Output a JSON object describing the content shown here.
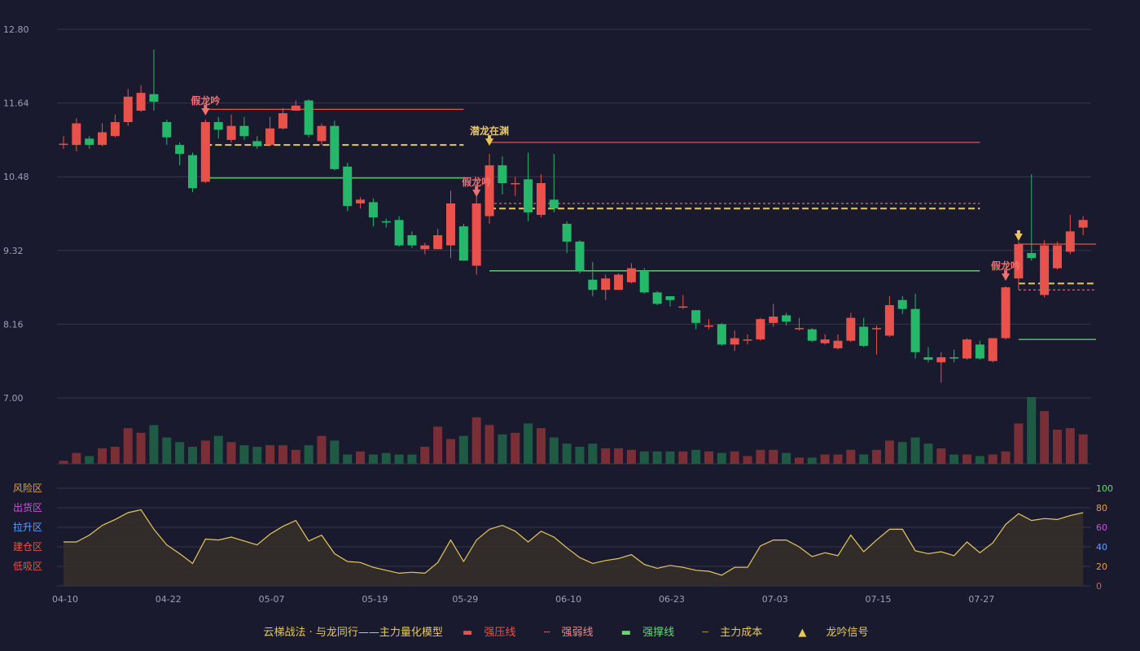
{
  "chart_data": {
    "type": "candlestick",
    "price_axis": {
      "ticks": [
        12.8,
        11.64,
        10.48,
        9.32,
        8.16,
        7.0
      ],
      "ylim": [
        7.0,
        12.8
      ]
    },
    "x_ticks": [
      "04-10",
      "04-22",
      "05-07",
      "05-19",
      "05-29",
      "06-10",
      "06-23",
      "07-03",
      "07-15",
      "07-27"
    ],
    "candles": [
      [
        11.0,
        11.0,
        11.12,
        10.92
      ],
      [
        10.98,
        11.32,
        11.4,
        10.88
      ],
      [
        11.08,
        10.98,
        11.12,
        10.92
      ],
      [
        10.98,
        11.18,
        11.32,
        10.96
      ],
      [
        11.12,
        11.34,
        11.46,
        11.1
      ],
      [
        11.34,
        11.74,
        11.86,
        11.28
      ],
      [
        11.52,
        11.8,
        11.92,
        11.5
      ],
      [
        11.78,
        11.66,
        12.48,
        11.52
      ],
      [
        11.34,
        11.1,
        11.38,
        10.98
      ],
      [
        10.98,
        10.84,
        11.02,
        10.66
      ],
      [
        10.82,
        10.3,
        10.86,
        10.24
      ],
      [
        10.4,
        11.34,
        11.38,
        10.38
      ],
      [
        11.34,
        11.22,
        11.42,
        11.08
      ],
      [
        11.06,
        11.28,
        11.46,
        11.02
      ],
      [
        11.28,
        11.12,
        11.42,
        11.06
      ],
      [
        11.04,
        10.96,
        11.12,
        10.92
      ],
      [
        10.98,
        11.24,
        11.42,
        10.98
      ],
      [
        11.24,
        11.48,
        11.56,
        11.22
      ],
      [
        11.52,
        11.6,
        11.68,
        11.52
      ],
      [
        11.68,
        11.14,
        11.7,
        11.1
      ],
      [
        11.04,
        11.28,
        11.32,
        10.98
      ],
      [
        11.28,
        10.6,
        11.36,
        10.58
      ],
      [
        10.64,
        10.02,
        10.7,
        9.94
      ],
      [
        10.06,
        10.12,
        10.16,
        9.98
      ],
      [
        10.08,
        9.84,
        10.14,
        9.7
      ],
      [
        9.78,
        9.76,
        9.82,
        9.68
      ],
      [
        9.8,
        9.4,
        9.86,
        9.38
      ],
      [
        9.56,
        9.4,
        9.62,
        9.36
      ],
      [
        9.34,
        9.4,
        9.44,
        9.26
      ],
      [
        9.34,
        9.56,
        9.66,
        9.34
      ],
      [
        9.4,
        10.06,
        10.26,
        9.2
      ],
      [
        9.7,
        9.16,
        9.74,
        9.16
      ],
      [
        9.08,
        10.06,
        10.28,
        8.94
      ],
      [
        9.86,
        10.66,
        10.84,
        9.74
      ],
      [
        10.66,
        10.38,
        10.8,
        10.2
      ],
      [
        10.38,
        10.38,
        10.48,
        10.18
      ],
      [
        10.44,
        9.92,
        10.86,
        9.78
      ],
      [
        9.88,
        10.38,
        10.52,
        9.84
      ],
      [
        10.12,
        9.98,
        10.84,
        9.92
      ],
      [
        9.74,
        9.46,
        9.78,
        9.28
      ],
      [
        9.46,
        9.0,
        9.48,
        8.96
      ],
      [
        8.86,
        8.7,
        9.14,
        8.6
      ],
      [
        8.7,
        8.88,
        8.94,
        8.54
      ],
      [
        8.7,
        8.94,
        8.96,
        8.7
      ],
      [
        8.82,
        9.04,
        9.12,
        8.8
      ],
      [
        9.0,
        8.66,
        9.04,
        8.64
      ],
      [
        8.66,
        8.48,
        8.68,
        8.46
      ],
      [
        8.6,
        8.54,
        8.6,
        8.44
      ],
      [
        8.42,
        8.44,
        8.62,
        8.4
      ],
      [
        8.38,
        8.18,
        8.38,
        8.08
      ],
      [
        8.12,
        8.14,
        8.24,
        8.08
      ],
      [
        8.16,
        7.84,
        8.18,
        7.82
      ],
      [
        7.84,
        7.94,
        8.06,
        7.74
      ],
      [
        7.92,
        7.92,
        8.0,
        7.84
      ],
      [
        7.92,
        8.24,
        8.26,
        7.9
      ],
      [
        8.18,
        8.28,
        8.48,
        8.12
      ],
      [
        8.3,
        8.2,
        8.34,
        8.14
      ],
      [
        8.08,
        8.1,
        8.26,
        8.06
      ],
      [
        8.08,
        7.9,
        8.1,
        7.88
      ],
      [
        7.86,
        7.92,
        8.0,
        7.84
      ],
      [
        7.78,
        7.9,
        8.0,
        7.76
      ],
      [
        7.9,
        8.26,
        8.34,
        7.88
      ],
      [
        8.12,
        7.82,
        8.26,
        7.8
      ],
      [
        8.08,
        8.1,
        8.14,
        7.68
      ],
      [
        7.98,
        8.46,
        8.6,
        7.96
      ],
      [
        8.54,
        8.4,
        8.6,
        8.32
      ],
      [
        8.4,
        7.72,
        8.64,
        7.62
      ],
      [
        7.64,
        7.6,
        7.8,
        7.56
      ],
      [
        7.56,
        7.64,
        7.72,
        7.24
      ],
      [
        7.64,
        7.62,
        7.76,
        7.56
      ],
      [
        7.62,
        7.92,
        7.94,
        7.6
      ],
      [
        7.84,
        7.62,
        7.9,
        7.6
      ],
      [
        7.58,
        7.94,
        7.94,
        7.56
      ],
      [
        7.94,
        8.74,
        8.76,
        7.92
      ],
      [
        8.88,
        9.42,
        9.46,
        8.7
      ],
      [
        9.28,
        9.2,
        10.52,
        9.16
      ],
      [
        8.62,
        9.4,
        9.48,
        8.58
      ],
      [
        9.04,
        9.4,
        9.46,
        9.02
      ],
      [
        9.3,
        9.62,
        9.88,
        9.26
      ],
      [
        9.68,
        9.8,
        9.86,
        9.56
      ]
    ],
    "volume": [
      2,
      7,
      5,
      10,
      11,
      23,
      20,
      25,
      17,
      14,
      11,
      15,
      18,
      14,
      12,
      11,
      12,
      12,
      9,
      12,
      18,
      15,
      6,
      8,
      6,
      7,
      6,
      6,
      11,
      24,
      16,
      18,
      30,
      25,
      19,
      20,
      26,
      23,
      17,
      13,
      11,
      13,
      10,
      10,
      9,
      8,
      8,
      8,
      8,
      9,
      8,
      7,
      8,
      5,
      9,
      9,
      7,
      4,
      4,
      6,
      6,
      9,
      6,
      9,
      15,
      14,
      17,
      13,
      10,
      6,
      6,
      5,
      6,
      8,
      26,
      43,
      34,
      22,
      23,
      19
    ],
    "oscillator": {
      "left_labels": [
        "风险区",
        "出货区",
        "拉升区",
        "建仓区",
        "低吸区"
      ],
      "ticks": [
        100,
        80,
        60,
        40,
        20,
        0
      ],
      "values": [
        45,
        45,
        52,
        62,
        68,
        75,
        78,
        58,
        42,
        33,
        23,
        48,
        47,
        50,
        46,
        42,
        53,
        61,
        67,
        46,
        52,
        33,
        25,
        24,
        19,
        16,
        13,
        14,
        13,
        24,
        47,
        25,
        47,
        58,
        62,
        56,
        45,
        56,
        50,
        39,
        29,
        23,
        26,
        28,
        32,
        22,
        18,
        21,
        19,
        16,
        15,
        11,
        19,
        19,
        41,
        47,
        47,
        40,
        30,
        34,
        31,
        52,
        35,
        47,
        58,
        58,
        36,
        33,
        35,
        31,
        45,
        34,
        44,
        63,
        74,
        67,
        69,
        68,
        72,
        75
      ]
    },
    "annotations": [
      {
        "text": "假龙吟",
        "type": "fake",
        "candle": 11,
        "price": 11.34
      },
      {
        "text": "潜龙在渊",
        "type": "real",
        "candle": 33,
        "price": 10.66
      },
      {
        "text": "假龙吟",
        "type": "fake",
        "candle": 32,
        "price": 10.06
      },
      {
        "text": "假龙吟",
        "type": "fake",
        "candle": 73,
        "price": 8.74
      }
    ],
    "signals": [
      {
        "candle": 74,
        "price": 9.42
      }
    ],
    "levels": [
      {
        "type": "pressure",
        "color": "#e8524a",
        "dash": "",
        "from": 11,
        "to": 31,
        "price": 11.54
      },
      {
        "type": "cost",
        "color": "#e6c85a",
        "dash": "8,4",
        "from": 11,
        "to": 31,
        "price": 10.98
      },
      {
        "type": "support",
        "color": "#5fdc6e",
        "dash": "",
        "from": 11,
        "to": 31,
        "price": 10.46
      },
      {
        "type": "pressure",
        "color": "#e8524a",
        "dash": "",
        "from": 33,
        "to": 71,
        "price": 11.02
      },
      {
        "type": "weak",
        "color": "#f08a8a",
        "dash": "3,3",
        "from": 33,
        "to": 71,
        "price": 10.06
      },
      {
        "type": "cost",
        "color": "#e6c85a",
        "dash": "8,4",
        "from": 33,
        "to": 71,
        "price": 9.98
      },
      {
        "type": "support",
        "color": "#5fdc6e",
        "dash": "",
        "from": 33,
        "to": 71,
        "price": 9.0
      },
      {
        "type": "pressure",
        "color": "#e8524a",
        "dash": "",
        "from": 74,
        "to": 80,
        "price": 9.42
      },
      {
        "type": "cost",
        "color": "#e6c85a",
        "dash": "8,4",
        "from": 74,
        "to": 80,
        "price": 8.8
      },
      {
        "type": "weak",
        "color": "#f08a8a",
        "dash": "3,3",
        "from": 74,
        "to": 80,
        "price": 8.7
      },
      {
        "type": "support",
        "color": "#5fdc6e",
        "dash": "",
        "from": 74,
        "to": 80,
        "price": 7.92
      }
    ],
    "colors": {
      "up": "#e8524a",
      "down": "#26b86a",
      "osc_line": "#e6c85a"
    }
  },
  "legend": {
    "model": "云梯战法 · 与龙同行——主力量化模型",
    "pressure": "强压线",
    "weak": "强弱线",
    "support": "强撑线",
    "cost": "主力成本",
    "signal": "龙吟信号"
  }
}
